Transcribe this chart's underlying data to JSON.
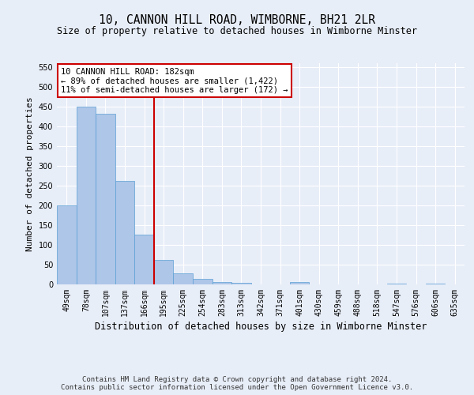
{
  "title": "10, CANNON HILL ROAD, WIMBORNE, BH21 2LR",
  "subtitle": "Size of property relative to detached houses in Wimborne Minster",
  "xlabel": "Distribution of detached houses by size in Wimborne Minster",
  "ylabel": "Number of detached properties",
  "categories": [
    "49sqm",
    "78sqm",
    "107sqm",
    "137sqm",
    "166sqm",
    "195sqm",
    "225sqm",
    "254sqm",
    "283sqm",
    "313sqm",
    "342sqm",
    "371sqm",
    "401sqm",
    "430sqm",
    "459sqm",
    "488sqm",
    "518sqm",
    "547sqm",
    "576sqm",
    "606sqm",
    "635sqm"
  ],
  "values": [
    200,
    450,
    432,
    263,
    127,
    62,
    29,
    14,
    7,
    5,
    0,
    0,
    6,
    0,
    0,
    0,
    0,
    3,
    0,
    3,
    0
  ],
  "bar_color": "#aec6e8",
  "bar_edge_color": "#5a9fd4",
  "bar_width": 1.0,
  "vline_x": 4.5,
  "vline_color": "#cc0000",
  "annotation_line1": "10 CANNON HILL ROAD: 182sqm",
  "annotation_line2": "← 89% of detached houses are smaller (1,422)",
  "annotation_line3": "11% of semi-detached houses are larger (172) →",
  "annotation_box_color": "#ffffff",
  "annotation_box_edge": "#cc0000",
  "ylim": [
    0,
    560
  ],
  "yticks": [
    0,
    50,
    100,
    150,
    200,
    250,
    300,
    350,
    400,
    450,
    500,
    550
  ],
  "footer_line1": "Contains HM Land Registry data © Crown copyright and database right 2024.",
  "footer_line2": "Contains public sector information licensed under the Open Government Licence v3.0.",
  "background_color": "#e8eef8",
  "grid_color": "#ffffff",
  "title_fontsize": 10.5,
  "subtitle_fontsize": 8.5,
  "xlabel_fontsize": 8.5,
  "ylabel_fontsize": 8,
  "tick_fontsize": 7,
  "annotation_fontsize": 7.5,
  "footer_fontsize": 6.5
}
